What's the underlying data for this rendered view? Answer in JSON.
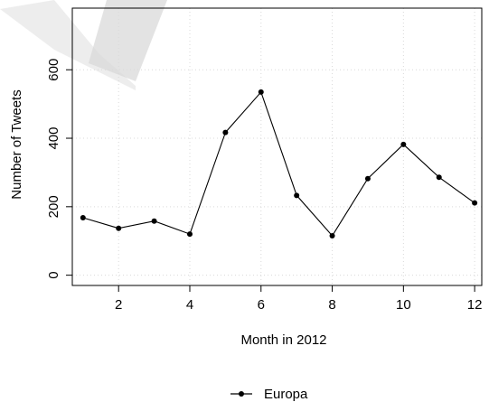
{
  "chart_data": {
    "type": "line",
    "title": "",
    "xlabel": "Month in 2012",
    "ylabel": "Number of Tweets",
    "xlim": [
      0.7,
      12.2
    ],
    "ylim": [
      -30,
      780
    ],
    "xticks": [
      2,
      4,
      6,
      8,
      10,
      12
    ],
    "yticks": [
      0,
      200,
      400,
      600
    ],
    "grid": true,
    "legend_position": "bottom-center",
    "series": [
      {
        "name": "Europa",
        "color": "#000000",
        "marker": "filled-circle",
        "x": [
          1,
          2,
          3,
          4,
          5,
          6,
          7,
          8,
          9,
          10,
          11,
          12
        ],
        "y": [
          168,
          137,
          158,
          120,
          417,
          535,
          233,
          115,
          282,
          382,
          286,
          211
        ]
      }
    ]
  },
  "watermark": {
    "color": "#cccccc",
    "opacity": 0.55
  }
}
